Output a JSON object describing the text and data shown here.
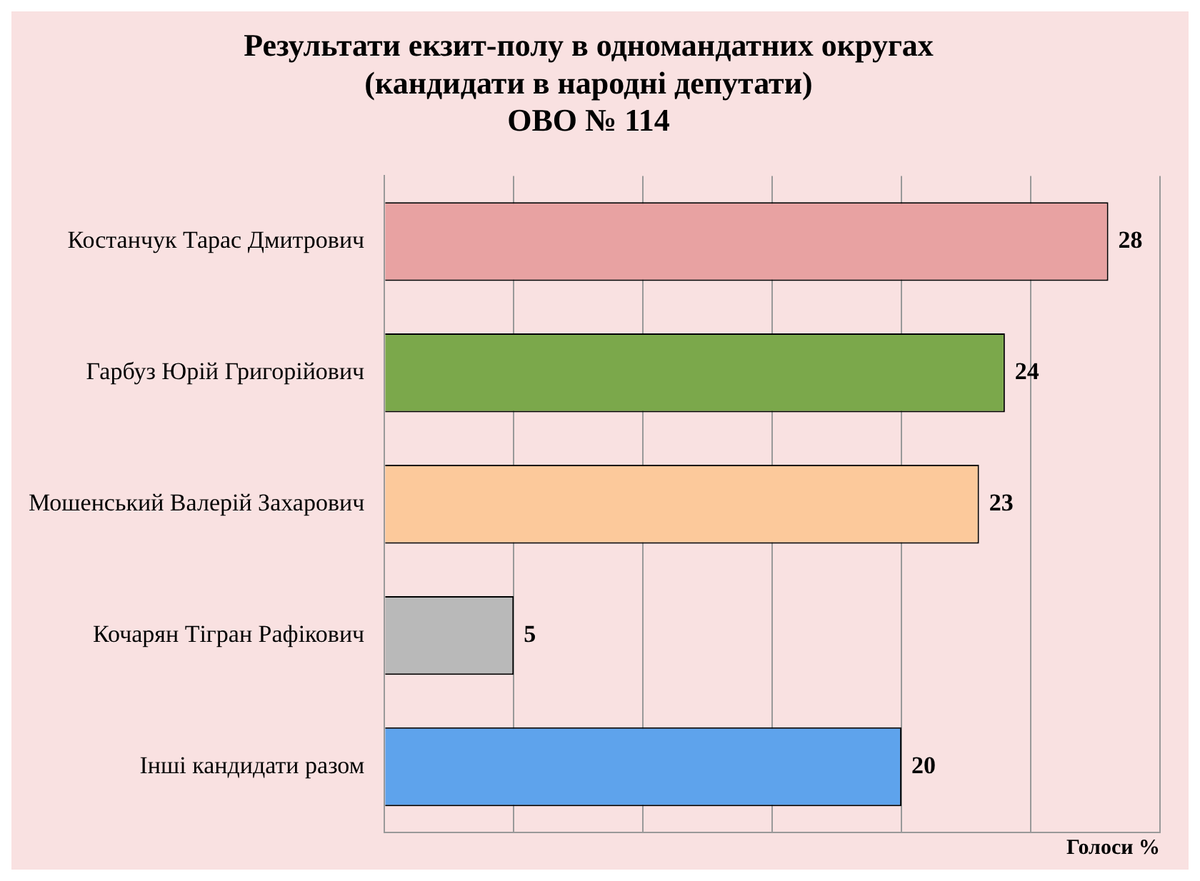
{
  "chart_data": {
    "type": "bar",
    "orientation": "horizontal",
    "title": "Результати екзит-полу в одномандатних округах\n(кандидати в народні депутати)\nОВО № 114",
    "xlabel": "Голоси %",
    "categories": [
      "Костанчук Тарас Дмитрович",
      "Гарбуз Юрій Григорійович",
      "Мошенський Валерій Захарович",
      "Кочарян Тігран Рафікович",
      "Інші кандидати разом"
    ],
    "values": [
      28,
      24,
      23,
      5,
      20
    ],
    "colors": [
      "#e8a2a2",
      "#7ba84b",
      "#fcc99b",
      "#b9b9b9",
      "#5ea3ec"
    ],
    "xlim": [
      0,
      30
    ],
    "xticks": [
      {
        "value": 0,
        "label": null
      },
      {
        "value": 5,
        "label": null
      },
      {
        "value": 10,
        "label": null
      },
      {
        "value": 15,
        "label": null
      },
      {
        "value": 20,
        "label": null
      },
      {
        "value": 25,
        "label": null
      },
      {
        "value": 30,
        "label": null
      }
    ],
    "tick_labels": "y",
    "grid": "x",
    "data_labels": true,
    "legend": false
  }
}
